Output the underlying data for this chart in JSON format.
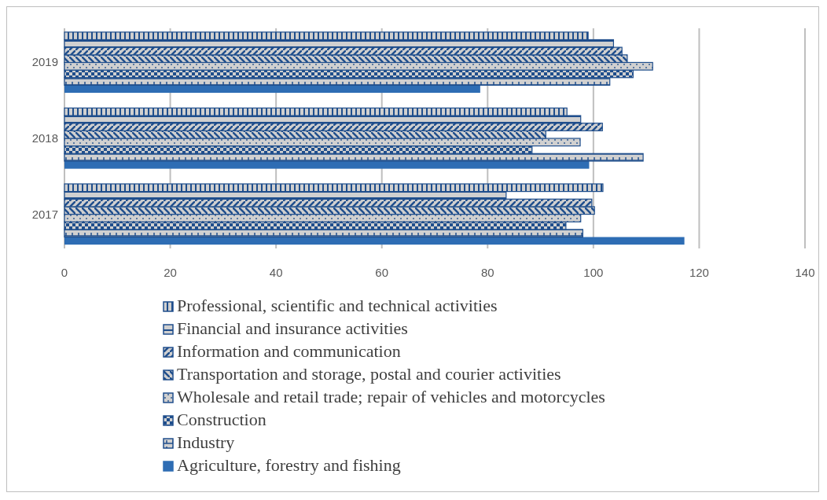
{
  "chart_data": {
    "type": "bar",
    "orientation": "horizontal",
    "categories": [
      "2019",
      "2018",
      "2017"
    ],
    "series": [
      {
        "name": "Agriculture, forestry and fishing",
        "color": "#2e6db4",
        "values": [
          78.6,
          99.2,
          117.2
        ]
      },
      {
        "name": "Industry",
        "color": "#1f4e8c",
        "values": [
          103.1,
          109.4,
          98.0
        ]
      },
      {
        "name": "Construction",
        "color": "#1f4e8c",
        "values": [
          107.5,
          88.4,
          94.8
        ]
      },
      {
        "name": "Wholesale and retail trade; repair of vehicles and motorcycles",
        "color": "#1f4e8c",
        "values": [
          111.2,
          97.5,
          97.6
        ]
      },
      {
        "name": "Transportation and storage, postal and courier activities",
        "color": "#1f4e8c",
        "values": [
          106.4,
          91.0,
          100.2
        ]
      },
      {
        "name": "Information and communication",
        "color": "#1f4e8c",
        "values": [
          105.4,
          101.7,
          99.7
        ]
      },
      {
        "name": "Financial and insurance activities",
        "color": "#1f4e8c",
        "values": [
          103.8,
          97.6,
          83.5
        ]
      },
      {
        "name": "Professional, scientific and technical activities",
        "color": "#1f4e8c",
        "values": [
          99.0,
          95.0,
          101.8
        ]
      }
    ],
    "xlim": [
      0,
      140
    ],
    "xticks": [
      0,
      20,
      40,
      60,
      80,
      100,
      120,
      140
    ],
    "grid": "x",
    "legend": "bottom"
  }
}
